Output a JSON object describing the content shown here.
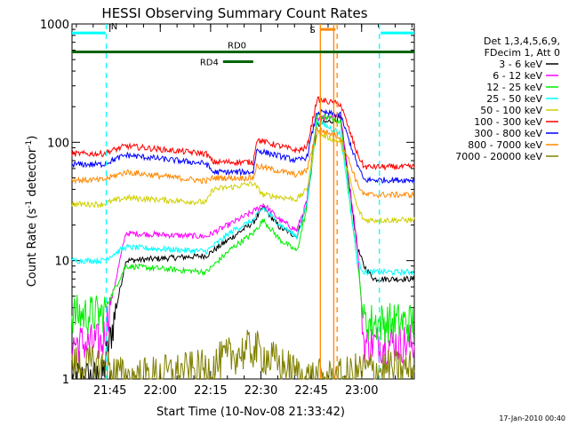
{
  "chart_data": {
    "type": "line",
    "title": "HESSI Observing Summary Count Rates",
    "xlabel": "Start Time (10-Nov-08 21:33:42)",
    "ylabel": "Count Rate (s",
    "ylabel_sup1": "-1",
    "ylabel_mid": " detector",
    "ylabel_sup2": "-1",
    "ylabel_end": ")",
    "y_scale": "log",
    "ylim": [
      1,
      1000
    ],
    "xlim_minutes": [
      0,
      102
    ],
    "x_ticks": [
      {
        "label": "21:45",
        "minutes": 11.3
      },
      {
        "label": "22:00",
        "minutes": 26.3
      },
      {
        "label": "22:15",
        "minutes": 41.3
      },
      {
        "label": "22:30",
        "minutes": 56.3
      },
      {
        "label": "22:45",
        "minutes": 71.3
      },
      {
        "label": "23:00",
        "minutes": 86.3
      }
    ],
    "y_ticks": [
      {
        "label": "1",
        "value": 1
      },
      {
        "label": "10",
        "value": 10
      },
      {
        "label": "100",
        "value": 100
      },
      {
        "label": "1000",
        "value": 1000
      }
    ],
    "legend": {
      "header": [
        "Det 1,3,4,5,6,9,",
        "FDecim 1, Att 0"
      ],
      "placement": "right"
    },
    "series": [
      {
        "name": "3 - 6 keV",
        "color": "#000000",
        "points": [
          [
            0,
            1
          ],
          [
            9,
            1
          ],
          [
            16,
            10
          ],
          [
            40,
            11
          ],
          [
            48,
            16
          ],
          [
            54,
            21
          ],
          [
            57,
            28
          ],
          [
            62,
            19
          ],
          [
            67,
            16
          ],
          [
            70,
            30
          ],
          [
            73,
            140
          ],
          [
            80,
            160
          ],
          [
            85,
            13
          ],
          [
            87,
            9
          ],
          [
            90,
            7
          ],
          [
            95,
            7
          ],
          [
            102,
            7
          ]
        ]
      },
      {
        "name": "6 - 12 keV",
        "color": "#ff00ff",
        "points": [
          [
            0,
            2
          ],
          [
            9,
            2
          ],
          [
            16,
            17
          ],
          [
            40,
            16
          ],
          [
            48,
            21
          ],
          [
            54,
            26
          ],
          [
            57,
            30
          ],
          [
            62,
            22
          ],
          [
            67,
            18
          ],
          [
            70,
            32
          ],
          [
            73,
            160
          ],
          [
            80,
            170
          ],
          [
            85,
            14
          ],
          [
            87,
            2
          ],
          [
            102,
            2
          ]
        ]
      },
      {
        "name": "12 - 25 keV",
        "color": "#00ee00",
        "points": [
          [
            0,
            3.5
          ],
          [
            9,
            3.5
          ],
          [
            16,
            9
          ],
          [
            40,
            8
          ],
          [
            48,
            13
          ],
          [
            54,
            17
          ],
          [
            57,
            22
          ],
          [
            62,
            15
          ],
          [
            67,
            12
          ],
          [
            70,
            28
          ],
          [
            73,
            170
          ],
          [
            80,
            150
          ],
          [
            85,
            10
          ],
          [
            87,
            3
          ],
          [
            102,
            3
          ]
        ]
      },
      {
        "name": "25 - 50 keV",
        "color": "#00ffff",
        "points": [
          [
            0,
            10
          ],
          [
            9,
            10
          ],
          [
            16,
            13
          ],
          [
            40,
            12
          ],
          [
            48,
            18
          ],
          [
            54,
            22
          ],
          [
            57,
            28
          ],
          [
            62,
            20
          ],
          [
            67,
            16
          ],
          [
            70,
            30
          ],
          [
            73,
            150
          ],
          [
            80,
            120
          ],
          [
            85,
            10
          ],
          [
            87,
            8
          ],
          [
            102,
            8
          ]
        ]
      },
      {
        "name": "50 - 100 keV",
        "color": "#d0d000",
        "points": [
          [
            0,
            30
          ],
          [
            9,
            30
          ],
          [
            16,
            34
          ],
          [
            40,
            31
          ],
          [
            42,
            40
          ],
          [
            48,
            42
          ],
          [
            54,
            45
          ],
          [
            57,
            36
          ],
          [
            67,
            33
          ],
          [
            70,
            40
          ],
          [
            73,
            120
          ],
          [
            80,
            100
          ],
          [
            85,
            28
          ],
          [
            87,
            22
          ],
          [
            102,
            22
          ]
        ]
      },
      {
        "name": "100 - 300 keV",
        "color": "#ff0000",
        "points": [
          [
            0,
            80
          ],
          [
            9,
            80
          ],
          [
            16,
            93
          ],
          [
            40,
            80
          ],
          [
            42,
            68
          ],
          [
            54,
            68
          ],
          [
            55,
            105
          ],
          [
            67,
            85
          ],
          [
            70,
            90
          ],
          [
            73,
            230
          ],
          [
            80,
            210
          ],
          [
            85,
            80
          ],
          [
            87,
            62
          ],
          [
            102,
            62
          ]
        ]
      },
      {
        "name": "300 - 800 keV",
        "color": "#0000ff",
        "points": [
          [
            0,
            65
          ],
          [
            9,
            65
          ],
          [
            16,
            78
          ],
          [
            40,
            66
          ],
          [
            42,
            56
          ],
          [
            54,
            56
          ],
          [
            55,
            86
          ],
          [
            67,
            70
          ],
          [
            70,
            75
          ],
          [
            73,
            180
          ],
          [
            80,
            170
          ],
          [
            85,
            65
          ],
          [
            87,
            48
          ],
          [
            102,
            48
          ]
        ]
      },
      {
        "name": "800 - 7000 keV",
        "color": "#ff8800",
        "points": [
          [
            0,
            48
          ],
          [
            9,
            48
          ],
          [
            16,
            56
          ],
          [
            40,
            47
          ],
          [
            42,
            50
          ],
          [
            54,
            50
          ],
          [
            55,
            63
          ],
          [
            67,
            53
          ],
          [
            70,
            58
          ],
          [
            73,
            130
          ],
          [
            80,
            110
          ],
          [
            85,
            45
          ],
          [
            87,
            36
          ],
          [
            102,
            36
          ]
        ]
      },
      {
        "name": "7000 - 20000 keV",
        "color": "#808000",
        "points": [
          [
            0,
            1.3
          ],
          [
            9,
            1.3
          ],
          [
            16,
            1
          ],
          [
            40,
            1.2
          ],
          [
            48,
            1.6
          ],
          [
            54,
            1.8
          ],
          [
            57,
            1.6
          ],
          [
            62,
            1.3
          ],
          [
            67,
            1.1
          ],
          [
            70,
            1
          ],
          [
            80,
            1
          ],
          [
            87,
            1.2
          ],
          [
            102,
            1.2
          ]
        ]
      }
    ],
    "annotations": [
      {
        "label": "N",
        "color": "#00ffff",
        "intervals_minutes": [
          [
            0,
            10
          ],
          [
            92,
            102
          ]
        ],
        "level": 840
      },
      {
        "label": "RD0",
        "color": "#006400",
        "intervals_minutes": [
          [
            0,
            102
          ]
        ],
        "level": 580
      },
      {
        "label": "RD4",
        "color": "#006400",
        "intervals_minutes": [
          [
            45,
            54
          ]
        ],
        "level": 480
      },
      {
        "label": "S",
        "color": "#ff8800",
        "intervals_minutes": [
          [
            74,
            78.5
          ]
        ],
        "level": 900
      }
    ],
    "vertical_lines": [
      {
        "color": "#00ffff",
        "style": "dashed",
        "minutes": 10.2
      },
      {
        "color": "#00ffff",
        "style": "dashed",
        "minutes": 91.6
      },
      {
        "color": "#ff8800",
        "style": "solid",
        "minutes": 74.0
      },
      {
        "color": "#ff8800",
        "style": "solid",
        "minutes": 78.0
      },
      {
        "color": "#ff8800",
        "style": "dashed",
        "minutes": 79.0
      }
    ]
  },
  "footer": {
    "timestamp": "17-Jan-2010 00:40"
  }
}
